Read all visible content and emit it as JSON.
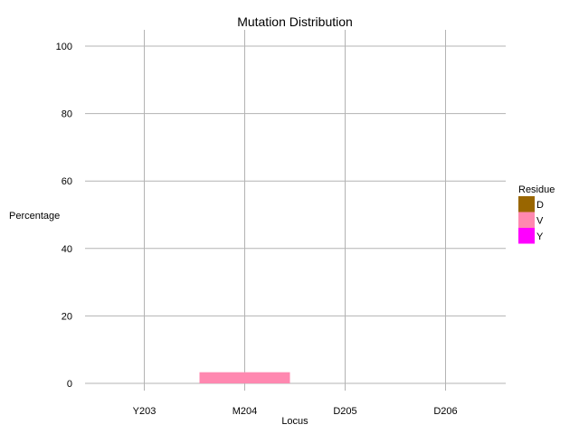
{
  "chart_data": {
    "type": "bar",
    "title": "Mutation Distribution",
    "xlabel": "Locus",
    "ylabel": "Percentage",
    "categories": [
      "Y203",
      "M204",
      "D205",
      "D206"
    ],
    "ylim": [
      0,
      104
    ],
    "yticks": [
      0,
      20,
      40,
      60,
      80,
      100
    ],
    "grid": true,
    "legend": {
      "title": "Residue",
      "placement": "right",
      "entries": [
        {
          "name": "D",
          "color": "#996600"
        },
        {
          "name": "V",
          "color": "#ff88b0"
        },
        {
          "name": "Y",
          "color": "#ff00ff"
        }
      ]
    },
    "series": [
      {
        "name": "D",
        "values": [
          0,
          0,
          0,
          0
        ]
      },
      {
        "name": "V",
        "values": [
          0,
          3.3,
          0,
          0
        ]
      },
      {
        "name": "Y",
        "values": [
          0,
          0,
          0,
          0
        ]
      }
    ]
  }
}
